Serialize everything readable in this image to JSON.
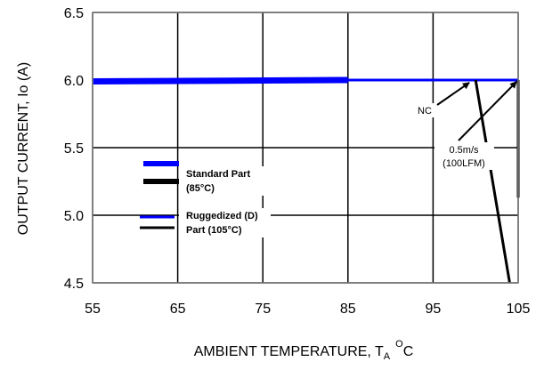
{
  "chart_data": {
    "type": "line",
    "xlabel": "AMBIENT TEMPERATURE, T",
    "xlabel_sub": "A",
    "xlabel_sup": "O",
    "xlabel_end": "C",
    "ylabel": "OUTPUT CURRENT, Io   (A)",
    "xlim": [
      55,
      105
    ],
    "ylim": [
      4.5,
      6.5
    ],
    "x_ticks": [
      "55",
      "65",
      "75",
      "85",
      "95",
      "105"
    ],
    "y_ticks": [
      "4.5",
      "5.0",
      "5.5",
      "6.0",
      "6.5"
    ],
    "grid": true,
    "legend_position": "left",
    "series": [
      {
        "name": "Standard Part (85°C)",
        "color": "#0000ff",
        "width": "thick",
        "x": [
          55,
          85
        ],
        "y": [
          5.99,
          6.0
        ]
      },
      {
        "name": "Ruggedized (D) Part (105°C)",
        "color": "#0000ff",
        "width": "thin",
        "x": [
          55,
          105
        ],
        "y": [
          6.0,
          6.0
        ]
      },
      {
        "name": "NC",
        "color": "#000000",
        "width": "thin",
        "x": [
          100,
          104
        ],
        "y": [
          6.0,
          4.5
        ]
      },
      {
        "name": "0.5m/s (100LFM)",
        "color": "#000000",
        "width": "thin",
        "x": [
          105,
          105
        ],
        "y": [
          6.0,
          5.13
        ]
      }
    ],
    "legend": [
      {
        "label_lines": [
          "Standard Part",
          "(85°C)"
        ],
        "colors": [
          "#0000ff",
          "#000000"
        ],
        "width": "thick"
      },
      {
        "label_lines": [
          "Ruggedized (D)",
          "Part (105°C)"
        ],
        "colors": [
          "#0000ff",
          "#000000"
        ],
        "width": "thin"
      }
    ],
    "annotations": [
      {
        "text_lines": [
          "NC"
        ],
        "at": [
          98,
          5.83
        ],
        "points_to": [
          100,
          6.0
        ]
      },
      {
        "text_lines": [
          "0.5m/s",
          "(100LFM)"
        ],
        "at": [
          98.8,
          5.45
        ],
        "points_to": [
          105,
          6.0
        ]
      }
    ]
  }
}
